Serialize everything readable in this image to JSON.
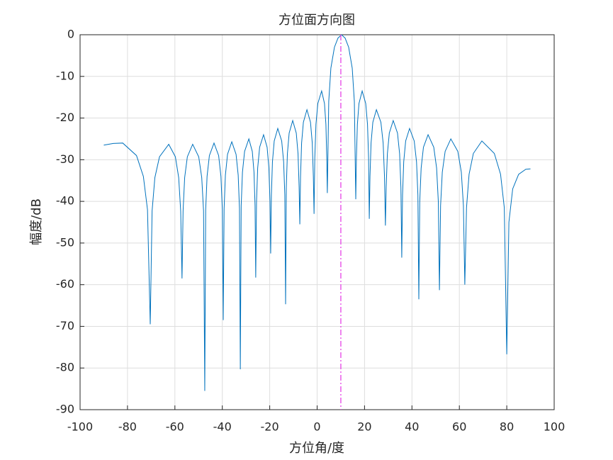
{
  "chart_data": {
    "type": "line",
    "title": "方位面方向图",
    "xlabel": "方位角/度",
    "ylabel": "幅度/dB",
    "color": "#0072bd",
    "x": [
      -90,
      -86,
      -82,
      -76.2,
      -73.3,
      -71.56,
      -70.4,
      -69.62,
      -68.45,
      -66.5,
      -62.6,
      -59.8,
      -58.4,
      -57.56,
      -57,
      -56.55,
      -55.88,
      -54.75,
      -52.5,
      -49.95,
      -48.68,
      -47.91,
      -47.4,
      -47.01,
      -46.43,
      -45.45,
      -43.5,
      -41.55,
      -40.58,
      -39.99,
      -39.6,
      -39.24,
      -38.7,
      -37.8,
      -36,
      -34.2,
      -33.3,
      -32.76,
      -32.4,
      -32.04,
      -31.5,
      -30.6,
      -28.8,
      -27.35,
      -26.63,
      -26.19,
      -25.9,
      -25.57,
      -25.08,
      -24.25,
      -22.6,
      -21.1,
      -20.35,
      -19.9,
      -19.6,
      -19.3,
      -18.85,
      -18.1,
      -16.6,
      -14.95,
      -14.13,
      -13.63,
      -13.3,
      -13,
      -12.55,
      -11.8,
      -10.3,
      -8.8,
      -8.05,
      -7.6,
      -7.3,
      -7,
      -6.55,
      -5.8,
      -4.3,
      -2.8,
      -2.05,
      -1.6,
      -1.3,
      -0.98,
      -0.5,
      0.3,
      1.9,
      3.1,
      3.7,
      4.06,
      4.3,
      4.9,
      5.8,
      7.3,
      8.8,
      10.3,
      11.8,
      13.3,
      14.8,
      15.7,
      16.3,
      16.57,
      16.98,
      17.65,
      19,
      20.5,
      21.25,
      21.7,
      22,
      22.3,
      22.75,
      23.5,
      25,
      26.9,
      27.85,
      28.42,
      28.8,
      29.13,
      29.63,
      30.45,
      32.1,
      33.9,
      34.8,
      35.34,
      35.7,
      36.03,
      36.53,
      37.35,
      39,
      40.95,
      41.93,
      42.51,
      42.9,
      43.29,
      43.88,
      44.85,
      46.8,
      49.2,
      50.4,
      51.12,
      51.6,
      52.08,
      52.8,
      54,
      56.4,
      59.35,
      60.83,
      61.71,
      62.3,
      63.02,
      64.1,
      65.9,
      69.5,
      74.75,
      77.38,
      78.95,
      80,
      80.9,
      82.5,
      85,
      88,
      90
    ],
    "values": [
      -26.5,
      -26.1,
      -26,
      -29,
      -34,
      -42,
      -69.5,
      -42.3,
      -34.3,
      -29.3,
      -26.3,
      -29.3,
      -34.3,
      -42.3,
      -58.5,
      -42.3,
      -34.3,
      -29.3,
      -26.3,
      -29.3,
      -34.3,
      -42.3,
      -85.5,
      -42,
      -34,
      -29,
      -26,
      -29,
      -34,
      -42,
      -68.5,
      -41.7,
      -33.7,
      -28.7,
      -25.7,
      -28.7,
      -33.7,
      -41.7,
      -80.3,
      -41,
      -33,
      -28,
      -25,
      -28,
      -33,
      -41,
      -58.3,
      -40,
      -32,
      -27,
      -24,
      -27,
      -32,
      -40,
      -52.5,
      -38.5,
      -30.5,
      -25.5,
      -22.5,
      -25.5,
      -30.5,
      -38.5,
      -64.7,
      -36.6,
      -28.6,
      -23.6,
      -20.6,
      -23.6,
      -28.6,
      -36.6,
      -45.5,
      -34,
      -26,
      -21,
      -18,
      -21,
      -26,
      -34,
      -43,
      -29.5,
      -21.5,
      -16.5,
      -13.5,
      -16.5,
      -21.5,
      -29.5,
      -38,
      -16,
      -8,
      -3,
      -0.8,
      0,
      -0.8,
      -3,
      -8,
      -16,
      -39.5,
      -29.5,
      -21.5,
      -16.5,
      -13.5,
      -16.5,
      -21.5,
      -29.5,
      -44.2,
      -34,
      -26,
      -21,
      -18,
      -21,
      -26,
      -34,
      -45.8,
      -36.6,
      -28.6,
      -23.6,
      -20.6,
      -23.6,
      -28.6,
      -36.6,
      -53.5,
      -38.5,
      -30.5,
      -25.5,
      -22.5,
      -25.5,
      -30.5,
      -38.5,
      -63.5,
      -40,
      -32,
      -27,
      -24,
      -27,
      -32,
      -40,
      -61.3,
      -41,
      -33,
      -28,
      -25,
      -28,
      -33,
      -41,
      -60,
      -41.5,
      -33.5,
      -28.5,
      -25.5,
      -28.5,
      -33.5,
      -41.5,
      -76.7,
      -45,
      -37,
      -33.5,
      -32.3,
      -32.2
    ],
    "marker_x": 10,
    "marker_color": "#e642e6",
    "xlim": [
      -100,
      100
    ],
    "xticks": [
      -100,
      -80,
      -60,
      -40,
      -20,
      0,
      20,
      40,
      60,
      80,
      100
    ],
    "ylim": [
      -90,
      0
    ],
    "yticks": [
      -90,
      -80,
      -70,
      -60,
      -50,
      -40,
      -30,
      -20,
      -10,
      0
    ],
    "grid": true
  }
}
